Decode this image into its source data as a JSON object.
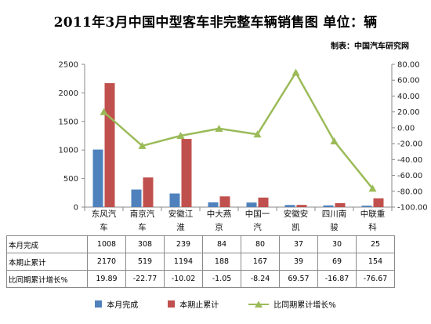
{
  "title": "2011年3月中国中型客车非完整车辆销售图 单位：辆",
  "source_note": "制表：中国汽车研究网",
  "colors": {
    "blue": "#4F81BD",
    "red": "#C0504D",
    "green": "#9BBB59"
  },
  "table": {
    "row_labels": [
      "本月完成",
      "本期止累计",
      "比同期累计增长%"
    ],
    "rows": [
      [
        "1008",
        "308",
        "239",
        "84",
        "80",
        "37",
        "30",
        "25"
      ],
      [
        "2170",
        "519",
        "1194",
        "188",
        "167",
        "39",
        "69",
        "154"
      ],
      [
        "19.89",
        "-22.77",
        "-10.02",
        "-1.05",
        "-8.24",
        "69.57",
        "-16.87",
        "-76.67"
      ]
    ]
  },
  "chart_data": {
    "type": "bar",
    "categories": [
      [
        "东风汽",
        "车"
      ],
      [
        "南京汽",
        "车"
      ],
      [
        "安徽江",
        "淮"
      ],
      [
        "中大燕",
        "京"
      ],
      [
        "中国一",
        "汽"
      ],
      [
        "安徽安",
        "凯"
      ],
      [
        "四川南",
        "骏"
      ],
      [
        "中联重",
        "科"
      ]
    ],
    "series": [
      {
        "name": "本月完成",
        "type": "bar",
        "axis": "left",
        "color": "#4F81BD",
        "values": [
          1008,
          308,
          239,
          84,
          80,
          37,
          30,
          25
        ]
      },
      {
        "name": "本期止累计",
        "type": "bar",
        "axis": "left",
        "color": "#C0504D",
        "values": [
          2170,
          519,
          1194,
          188,
          167,
          39,
          69,
          154
        ]
      },
      {
        "name": "比同期累计增长%",
        "type": "line",
        "axis": "right",
        "color": "#9BBB59",
        "values": [
          19.89,
          -22.77,
          -10.02,
          -1.05,
          -8.24,
          69.57,
          -16.87,
          -76.67
        ]
      }
    ],
    "y_left": {
      "min": 0,
      "max": 2500,
      "step": 500,
      "ticks": [
        "0",
        "500",
        "1000",
        "1500",
        "2000",
        "2500"
      ]
    },
    "y_right": {
      "min": -100,
      "max": 80,
      "step": 20,
      "ticks": [
        "-100.00",
        "-80.00",
        "-60.00",
        "-40.00",
        "-20.00",
        "0.00",
        "20.00",
        "40.00",
        "60.00",
        "80.00"
      ]
    },
    "grid": false,
    "legend_position": "bottom"
  }
}
